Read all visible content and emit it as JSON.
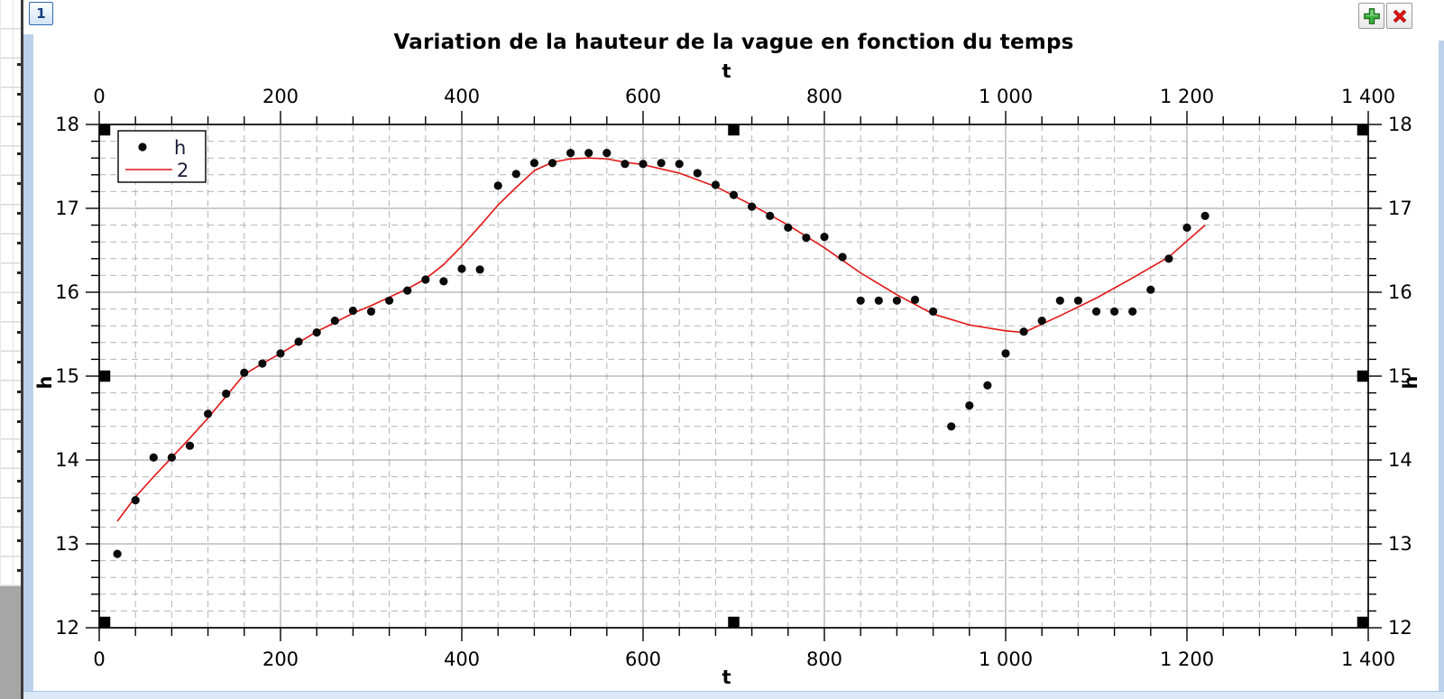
{
  "window": {
    "tab_label": "1",
    "add_button_tooltip": "plus-icon",
    "close_button_tooltip": "close-icon"
  },
  "chart_data": {
    "type": "scatter",
    "title": "Variation de la hauteur de la vague en fonction du temps",
    "grid": true,
    "legend_position": "top-left",
    "axes": {
      "x": {
        "label": "t",
        "min": 0,
        "max": 1400,
        "major": 200,
        "minor": 40,
        "ticks": [
          {
            "v": 0,
            "label": "0"
          },
          {
            "v": 200,
            "label": "200"
          },
          {
            "v": 400,
            "label": "400"
          },
          {
            "v": 600,
            "label": "600"
          },
          {
            "v": 800,
            "label": "800"
          },
          {
            "v": 1000,
            "label": "1 000"
          },
          {
            "v": 1200,
            "label": "1 200"
          },
          {
            "v": 1400,
            "label": "1 400"
          }
        ]
      },
      "y": {
        "label": "h",
        "min": 12,
        "max": 18,
        "major": 1,
        "minor": 0.2,
        "ticks": [
          {
            "v": 12,
            "label": "12"
          },
          {
            "v": 13,
            "label": "13"
          },
          {
            "v": 14,
            "label": "14"
          },
          {
            "v": 15,
            "label": "15"
          },
          {
            "v": 16,
            "label": "16"
          },
          {
            "v": 17,
            "label": "17"
          },
          {
            "v": 18,
            "label": "18"
          }
        ]
      }
    },
    "legend": [
      {
        "label": "h",
        "marker": "dot",
        "color": "#0a0a0a"
      },
      {
        "label": "2",
        "marker": "line",
        "color": "#e21414"
      }
    ],
    "series": [
      {
        "name": "h",
        "type": "scatter",
        "color": "#0a0a0a",
        "points": [
          [
            20,
            12.88
          ],
          [
            40,
            13.52
          ],
          [
            60,
            14.03
          ],
          [
            80,
            14.03
          ],
          [
            100,
            14.17
          ],
          [
            120,
            14.55
          ],
          [
            140,
            14.79
          ],
          [
            160,
            15.04
          ],
          [
            180,
            15.15
          ],
          [
            200,
            15.27
          ],
          [
            220,
            15.41
          ],
          [
            240,
            15.52
          ],
          [
            260,
            15.66
          ],
          [
            280,
            15.78
          ],
          [
            300,
            15.77
          ],
          [
            320,
            15.9
          ],
          [
            340,
            16.02
          ],
          [
            360,
            16.15
          ],
          [
            380,
            16.13
          ],
          [
            400,
            16.28
          ],
          [
            420,
            16.27
          ],
          [
            440,
            17.27
          ],
          [
            460,
            17.41
          ],
          [
            480,
            17.54
          ],
          [
            500,
            17.54
          ],
          [
            520,
            17.66
          ],
          [
            540,
            17.66
          ],
          [
            560,
            17.66
          ],
          [
            580,
            17.53
          ],
          [
            600,
            17.53
          ],
          [
            620,
            17.54
          ],
          [
            640,
            17.53
          ],
          [
            660,
            17.42
          ],
          [
            680,
            17.28
          ],
          [
            700,
            17.16
          ],
          [
            720,
            17.02
          ],
          [
            740,
            16.91
          ],
          [
            760,
            16.77
          ],
          [
            780,
            16.65
          ],
          [
            800,
            16.66
          ],
          [
            820,
            16.42
          ],
          [
            840,
            15.9
          ],
          [
            860,
            15.9
          ],
          [
            880,
            15.9
          ],
          [
            900,
            15.91
          ],
          [
            920,
            15.77
          ],
          [
            940,
            14.4
          ],
          [
            960,
            14.65
          ],
          [
            980,
            14.89
          ],
          [
            1000,
            15.27
          ],
          [
            1020,
            15.53
          ],
          [
            1040,
            15.66
          ],
          [
            1060,
            15.9
          ],
          [
            1080,
            15.9
          ],
          [
            1100,
            15.77
          ],
          [
            1120,
            15.77
          ],
          [
            1140,
            15.77
          ],
          [
            1160,
            16.03
          ],
          [
            1180,
            16.4
          ],
          [
            1200,
            16.77
          ],
          [
            1220,
            16.91
          ]
        ]
      },
      {
        "name": "2",
        "type": "line",
        "color": "#e21414",
        "points": [
          [
            20,
            13.27
          ],
          [
            40,
            13.56
          ],
          [
            60,
            13.8
          ],
          [
            80,
            14.03
          ],
          [
            100,
            14.26
          ],
          [
            120,
            14.5
          ],
          [
            140,
            14.76
          ],
          [
            160,
            15.02
          ],
          [
            180,
            15.15
          ],
          [
            200,
            15.27
          ],
          [
            220,
            15.4
          ],
          [
            240,
            15.53
          ],
          [
            260,
            15.64
          ],
          [
            280,
            15.75
          ],
          [
            300,
            15.84
          ],
          [
            320,
            15.94
          ],
          [
            340,
            16.04
          ],
          [
            360,
            16.16
          ],
          [
            380,
            16.33
          ],
          [
            400,
            16.55
          ],
          [
            420,
            16.79
          ],
          [
            440,
            17.04
          ],
          [
            460,
            17.25
          ],
          [
            480,
            17.45
          ],
          [
            500,
            17.55
          ],
          [
            520,
            17.59
          ],
          [
            540,
            17.6
          ],
          [
            560,
            17.59
          ],
          [
            580,
            17.55
          ],
          [
            600,
            17.52
          ],
          [
            640,
            17.42
          ],
          [
            680,
            17.26
          ],
          [
            720,
            17.04
          ],
          [
            760,
            16.8
          ],
          [
            800,
            16.53
          ],
          [
            840,
            16.23
          ],
          [
            880,
            15.97
          ],
          [
            920,
            15.74
          ],
          [
            960,
            15.61
          ],
          [
            1000,
            15.54
          ],
          [
            1020,
            15.52
          ],
          [
            1060,
            15.72
          ],
          [
            1100,
            15.93
          ],
          [
            1140,
            16.17
          ],
          [
            1180,
            16.42
          ],
          [
            1220,
            16.8
          ]
        ]
      }
    ],
    "colors": {
      "axis": "#000000",
      "grid_major": "#989898",
      "grid_minor": "#b4b4b4",
      "point": "#0a0a0a",
      "fit_line": "#e21414",
      "selection_handle": "#000000"
    }
  }
}
